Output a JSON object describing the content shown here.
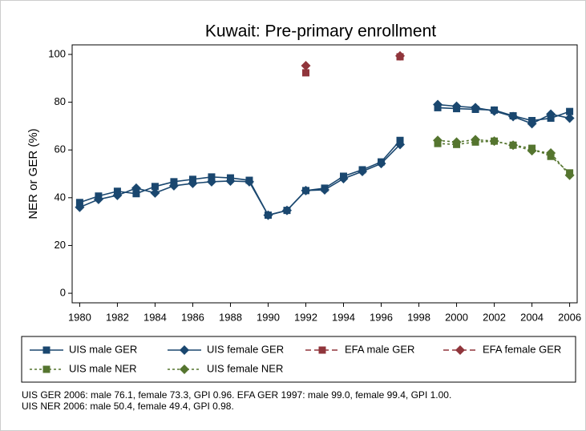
{
  "chart_data": {
    "type": "line",
    "title": "Kuwait: Pre-primary enrollment",
    "y_label": "NER or GER (%)",
    "x": [
      1980,
      1981,
      1982,
      1983,
      1984,
      1985,
      1986,
      1987,
      1988,
      1989,
      1990,
      1991,
      1992,
      1993,
      1994,
      1995,
      1996,
      1997,
      1998,
      1999,
      2000,
      2001,
      2002,
      2003,
      2004,
      2005,
      2006
    ],
    "series": [
      {
        "name": "UIS male GER",
        "color": "#1a476f",
        "marker": "square",
        "dash": "solid",
        "values": [
          38,
          40.7,
          42.7,
          41.7,
          44.7,
          46.7,
          47.7,
          48.7,
          48.3,
          47.3,
          32.7,
          34.7,
          43,
          44,
          49,
          51.7,
          55,
          64,
          null,
          77.7,
          77.3,
          77,
          76.7,
          74.3,
          72.3,
          73.3,
          76.1
        ]
      },
      {
        "name": "UIS female GER",
        "color": "#1a476f",
        "marker": "diamond",
        "dash": "solid",
        "values": [
          36,
          39.3,
          41,
          44,
          42,
          45,
          46,
          46.7,
          47,
          46.7,
          32.7,
          34.7,
          43,
          43.3,
          48,
          51,
          54.3,
          62.3,
          null,
          79,
          78.3,
          77.7,
          76.3,
          74,
          71,
          75,
          73.3
        ]
      },
      {
        "name": "EFA male GER",
        "color": "#90353b",
        "marker": "square",
        "dash": "long",
        "values": [
          null,
          null,
          null,
          null,
          null,
          null,
          null,
          null,
          null,
          null,
          null,
          null,
          92.3,
          null,
          null,
          null,
          null,
          99.0,
          null,
          null,
          null,
          null,
          null,
          null,
          null,
          null,
          null
        ]
      },
      {
        "name": "EFA female GER",
        "color": "#90353b",
        "marker": "diamond",
        "dash": "long",
        "values": [
          null,
          null,
          null,
          null,
          null,
          null,
          null,
          null,
          null,
          null,
          null,
          null,
          95.3,
          null,
          null,
          null,
          null,
          99.4,
          null,
          null,
          null,
          null,
          null,
          null,
          null,
          null,
          null
        ]
      },
      {
        "name": "UIS male NER",
        "color": "#55752f",
        "marker": "square",
        "dash": "short",
        "values": [
          null,
          null,
          null,
          null,
          null,
          null,
          null,
          null,
          null,
          null,
          null,
          null,
          null,
          null,
          null,
          null,
          null,
          null,
          null,
          62.7,
          62.3,
          63.3,
          63.7,
          62,
          60.7,
          57.3,
          50.4
        ]
      },
      {
        "name": "UIS female NER",
        "color": "#55752f",
        "marker": "diamond",
        "dash": "short",
        "values": [
          null,
          null,
          null,
          null,
          null,
          null,
          null,
          null,
          null,
          null,
          null,
          null,
          null,
          null,
          null,
          null,
          null,
          null,
          null,
          64,
          63.3,
          64.3,
          63.7,
          62,
          59.7,
          58.7,
          49.4
        ]
      }
    ],
    "xlim": [
      1979.6,
      2006.4
    ],
    "xticks": [
      1980,
      1982,
      1984,
      1986,
      1988,
      1990,
      1992,
      1994,
      1996,
      1998,
      2000,
      2002,
      2004,
      2006
    ],
    "ylim": [
      -4,
      104
    ],
    "yticks": [
      0,
      20,
      40,
      60,
      80,
      100
    ],
    "notes": [
      "UIS GER 2006: male 76.1, female 73.3, GPI 0.96. EFA GER 1997: male 99.0, female 99.4, GPI 1.00.",
      "UIS NER 2006: male 50.4, female 49.4, GPI 0.98."
    ]
  }
}
